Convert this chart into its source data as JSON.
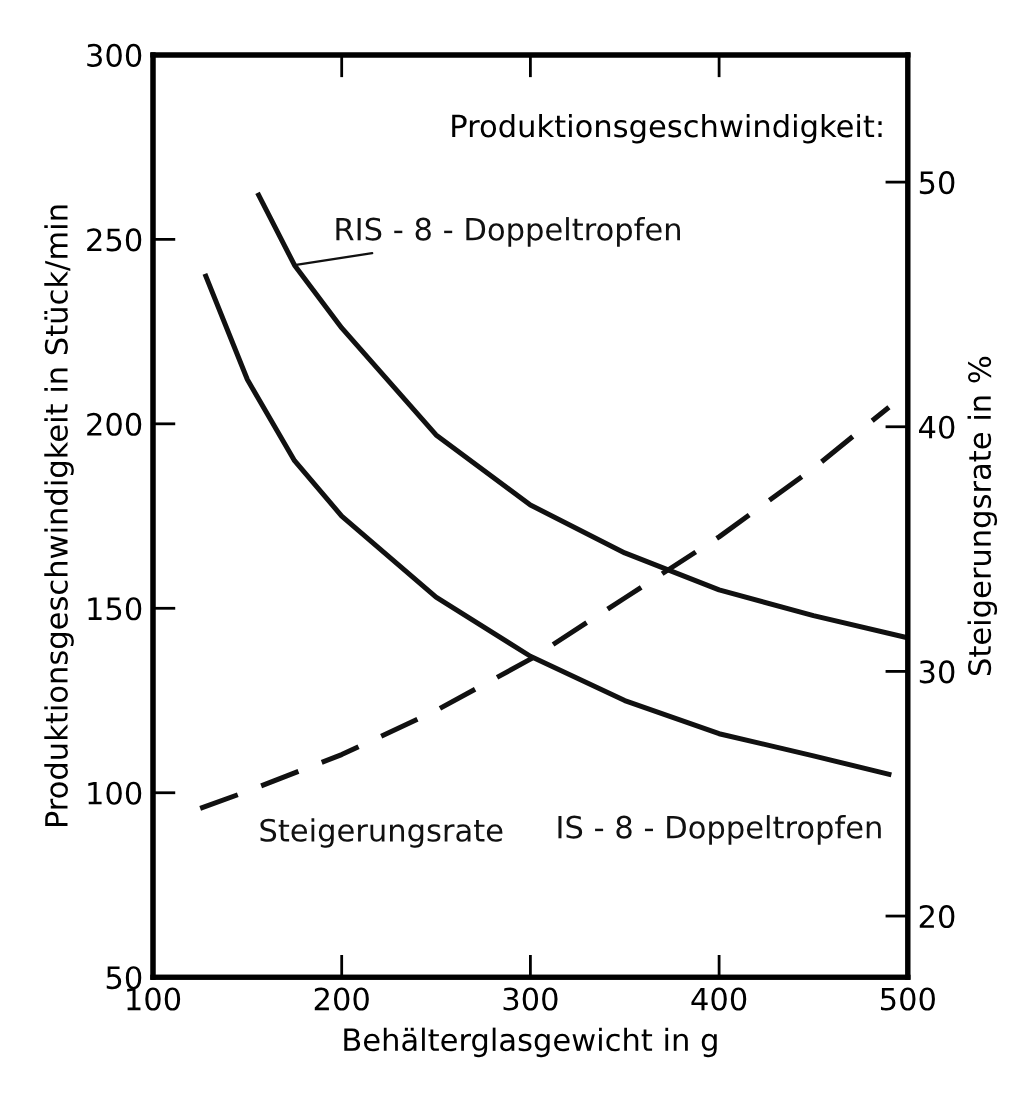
{
  "chart_data": {
    "type": "line",
    "xlabel": "Behälterglasgewicht in g",
    "ylabel": "Produktionsgeschwindigkeit in Stück/min",
    "y2label": "Steigerungsrate in %",
    "annotations": [
      "Produktionsgeschwindigkeit:"
    ],
    "series": [
      {
        "name": "RIS - 8 - Doppeltropfen",
        "color": "#111111",
        "line_style": "solid",
        "x": [
          156,
          175,
          200,
          250,
          300,
          350,
          400,
          450,
          500
        ],
        "values": [
          262,
          243,
          226,
          197,
          178,
          165,
          155,
          148,
          142
        ]
      },
      {
        "name": "IS - 8 - Doppeltropfen",
        "color": "#111111",
        "line_style": "solid",
        "x": [
          128,
          150,
          175,
          200,
          250,
          300,
          350,
          400,
          450,
          490
        ],
        "values": [
          240,
          212,
          190,
          175,
          153,
          137,
          125,
          116,
          110,
          105
        ]
      },
      {
        "name": "Steigerungsrate",
        "color": "#111111",
        "line_style": "dashed",
        "axis": "y2",
        "x": [
          125,
          150,
          200,
          250,
          300,
          350,
          400,
          450,
          490
        ],
        "values": [
          24.4,
          25.1,
          26.6,
          28.4,
          30.5,
          33,
          35.5,
          38.3,
          40.8
        ]
      }
    ],
    "xlim": [
      100,
      500
    ],
    "xticks": [
      100,
      200,
      300,
      400,
      500
    ],
    "ylim": [
      50,
      300
    ],
    "yticks": [
      50,
      100,
      150,
      200,
      250,
      300
    ],
    "y2lim": [
      17.5,
      55.2
    ],
    "y2ticks": [
      20,
      30,
      40,
      50
    ],
    "grid": false,
    "legend": false,
    "marker": "none"
  }
}
